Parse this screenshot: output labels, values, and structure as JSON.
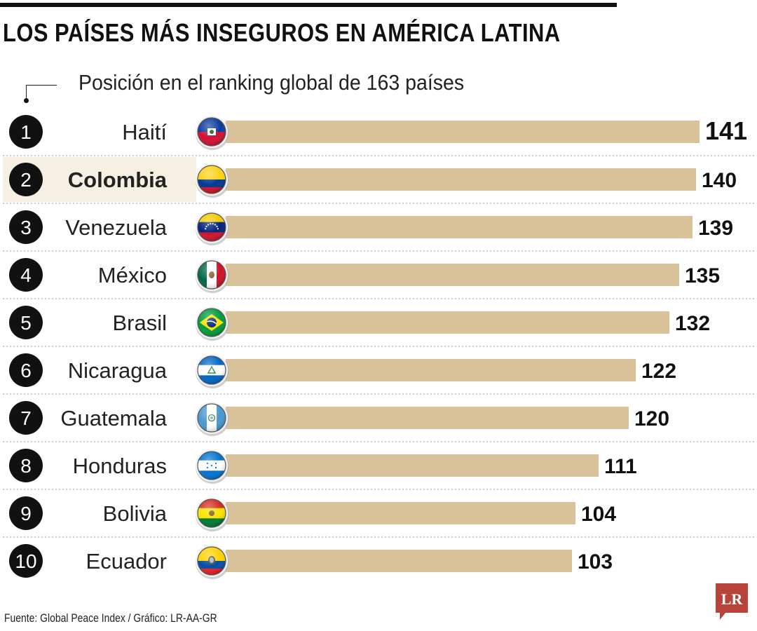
{
  "title": "LOS PAÍSES MÁS INSEGUROS EN AMÉRICA LATINA",
  "subtitle": "Posición en el ranking global de 163 países",
  "footer": "Fuente: Global Peace Index / Gráfico: LR-AA-GR",
  "logo_text": "LR",
  "colors": {
    "bar": "#d9c29a",
    "highlight_row": "#f6f0e3",
    "rank_circle": "#111111",
    "logo": "#b8433a"
  },
  "chart_data": {
    "type": "bar",
    "orientation": "horizontal",
    "categories": [
      "Haití",
      "Colombia",
      "Venezuela",
      "México",
      "Brasil",
      "Nicaragua",
      "Guatemala",
      "Honduras",
      "Bolivia",
      "Ecuador"
    ],
    "ranks": [
      "1",
      "2",
      "3",
      "4",
      "5",
      "6",
      "7",
      "8",
      "9",
      "10"
    ],
    "values": [
      141,
      140,
      139,
      135,
      132,
      122,
      120,
      111,
      104,
      103
    ],
    "highlighted": "Colombia",
    "flag_icons": [
      "haiti-flag-icon",
      "colombia-flag-icon",
      "venezuela-flag-icon",
      "mexico-flag-icon",
      "brazil-flag-icon",
      "nicaragua-flag-icon",
      "guatemala-flag-icon",
      "honduras-flag-icon",
      "bolivia-flag-icon",
      "ecuador-flag-icon"
    ],
    "grid": false,
    "legend": "none"
  }
}
